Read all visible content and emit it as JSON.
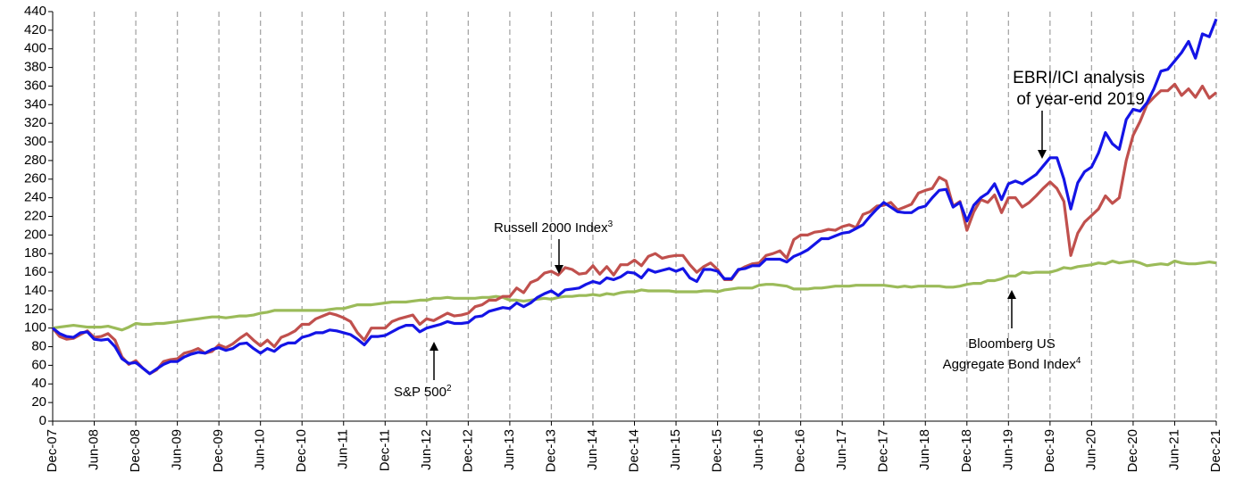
{
  "chart_data": {
    "type": "line",
    "categories": [
      "Dec-07",
      null,
      null,
      null,
      null,
      null,
      "Jun-08",
      null,
      null,
      null,
      null,
      null,
      "Dec-08",
      null,
      null,
      null,
      null,
      null,
      "Jun-09",
      null,
      null,
      null,
      null,
      null,
      "Dec-09",
      null,
      null,
      null,
      null,
      null,
      "Jun-10",
      null,
      null,
      null,
      null,
      null,
      "Dec-10",
      null,
      null,
      null,
      null,
      null,
      "Jun-11",
      null,
      null,
      null,
      null,
      null,
      "Dec-11",
      null,
      null,
      null,
      null,
      null,
      "Jun-12",
      null,
      null,
      null,
      null,
      null,
      "Dec-12",
      null,
      null,
      null,
      null,
      null,
      "Jun-13",
      null,
      null,
      null,
      null,
      null,
      "Dec-13",
      null,
      null,
      null,
      null,
      null,
      "Jun-14",
      null,
      null,
      null,
      null,
      null,
      "Dec-14",
      null,
      null,
      null,
      null,
      null,
      "Jun-15",
      null,
      null,
      null,
      null,
      null,
      "Dec-15",
      null,
      null,
      null,
      null,
      null,
      "Jun-16",
      null,
      null,
      null,
      null,
      null,
      "Dec-16",
      null,
      null,
      null,
      null,
      null,
      "Jun-17",
      null,
      null,
      null,
      null,
      null,
      "Dec-17",
      null,
      null,
      null,
      null,
      null,
      "Jun-18",
      null,
      null,
      null,
      null,
      null,
      "Dec-18",
      null,
      null,
      null,
      null,
      null,
      "Jun-19",
      null,
      null,
      null,
      null,
      null,
      "Dec-19",
      null,
      null,
      null,
      null,
      null,
      "Jun-20",
      null,
      null,
      null,
      null,
      null,
      "Dec-20",
      null,
      null,
      null,
      null,
      null,
      "Jun-21",
      null,
      null,
      null,
      null,
      null,
      "Dec-21"
    ],
    "series": [
      {
        "name": "S&P 500",
        "sup": "2",
        "color": "#1414e6",
        "values": [
          100,
          94,
          91,
          90,
          95,
          96,
          88,
          87,
          88,
          80,
          67,
          62,
          63,
          57,
          51,
          56,
          61,
          64,
          64,
          69,
          72,
          74,
          73,
          77,
          79,
          76,
          78,
          83,
          84,
          78,
          73,
          78,
          75,
          81,
          84,
          84,
          90,
          92,
          95,
          95,
          98,
          97,
          95,
          93,
          88,
          82,
          91,
          91,
          92,
          96,
          100,
          103,
          103,
          96,
          100,
          102,
          104,
          107,
          105,
          105,
          106,
          112,
          113,
          118,
          120,
          122,
          121,
          127,
          123,
          127,
          133,
          137,
          140,
          135,
          141,
          142,
          143,
          147,
          150,
          148,
          154,
          152,
          155,
          160,
          159,
          154,
          163,
          160,
          162,
          164,
          161,
          164,
          154,
          150,
          163,
          163,
          161,
          153,
          153,
          163,
          164,
          167,
          167,
          174,
          174,
          174,
          171,
          177,
          180,
          184,
          190,
          196,
          196,
          199,
          202,
          203,
          207,
          211,
          220,
          228,
          235,
          230,
          225,
          224,
          224,
          229,
          231,
          240,
          248,
          249,
          230,
          235,
          215,
          232,
          240,
          245,
          255,
          238,
          255,
          258,
          255,
          260,
          265,
          274,
          283,
          283,
          260,
          228,
          256,
          268,
          273,
          288,
          310,
          298,
          292,
          324,
          335,
          333,
          342,
          357,
          376,
          378,
          387,
          396,
          408,
          390,
          416,
          413,
          432
        ]
      },
      {
        "name": "Russell 2000 Index",
        "sup": "3",
        "color": "#c0504d",
        "values": [
          100,
          91,
          88,
          89,
          93,
          97,
          90,
          91,
          94,
          87,
          69,
          61,
          65,
          57,
          51,
          55,
          64,
          66,
          67,
          73,
          75,
          78,
          73,
          75,
          82,
          79,
          83,
          89,
          94,
          87,
          81,
          87,
          80,
          90,
          93,
          97,
          104,
          104,
          110,
          113,
          116,
          114,
          111,
          107,
          95,
          87,
          100,
          100,
          100,
          107,
          110,
          112,
          114,
          104,
          110,
          108,
          112,
          116,
          113,
          114,
          116,
          123,
          125,
          130,
          130,
          134,
          134,
          143,
          138,
          149,
          152,
          159,
          161,
          157,
          165,
          163,
          158,
          159,
          167,
          158,
          166,
          157,
          168,
          168,
          173,
          167,
          177,
          180,
          175,
          177,
          178,
          178,
          168,
          160,
          166,
          170,
          163,
          152,
          152,
          162,
          166,
          169,
          170,
          178,
          180,
          183,
          175,
          195,
          200,
          200,
          203,
          204,
          206,
          205,
          209,
          211,
          208,
          222,
          225,
          231,
          232,
          235,
          227,
          230,
          233,
          245,
          248,
          250,
          262,
          258,
          231,
          236,
          205,
          225,
          238,
          235,
          243,
          224,
          240,
          240,
          230,
          235,
          242,
          250,
          257,
          250,
          236,
          178,
          202,
          214,
          221,
          228,
          242,
          234,
          240,
          280,
          307,
          322,
          340,
          348,
          355,
          355,
          362,
          350,
          357,
          348,
          360,
          347,
          353
        ]
      },
      {
        "name": "Bloomberg US Aggregate Bond Index",
        "sup": "4",
        "color": "#9bbb59",
        "values": [
          100,
          101,
          102,
          103,
          102,
          101,
          101,
          101,
          102,
          100,
          98,
          101,
          105,
          104,
          104,
          105,
          105,
          106,
          107,
          108,
          109,
          110,
          111,
          112,
          112,
          111,
          112,
          113,
          113,
          114,
          116,
          117,
          119,
          119,
          119,
          119,
          119,
          119,
          119,
          119,
          120,
          121,
          121,
          123,
          125,
          125,
          125,
          126,
          127,
          128,
          128,
          128,
          129,
          130,
          130,
          132,
          132,
          133,
          132,
          132,
          132,
          132,
          133,
          133,
          134,
          133,
          130,
          130,
          129,
          130,
          131,
          132,
          131,
          133,
          134,
          134,
          135,
          135,
          136,
          135,
          137,
          136,
          138,
          139,
          139,
          141,
          140,
          140,
          140,
          140,
          139,
          139,
          139,
          139,
          140,
          140,
          139,
          141,
          142,
          143,
          143,
          143,
          146,
          147,
          147,
          146,
          145,
          142,
          142,
          142,
          143,
          143,
          144,
          145,
          145,
          145,
          146,
          146,
          146,
          146,
          146,
          145,
          144,
          145,
          144,
          145,
          145,
          145,
          145,
          144,
          144,
          145,
          147,
          148,
          148,
          151,
          151,
          153,
          156,
          156,
          160,
          159,
          160,
          160,
          160,
          162,
          165,
          164,
          166,
          167,
          168,
          170,
          169,
          172,
          170,
          171,
          172,
          170,
          167,
          168,
          169,
          168,
          172,
          170,
          169,
          169,
          170,
          171,
          170
        ]
      }
    ],
    "annotation": [
      "EBRI/ICI analysis",
      "of year-end 2019"
    ],
    "ylim": [
      0,
      440
    ],
    "yticks": [
      0,
      20,
      40,
      60,
      80,
      100,
      120,
      140,
      160,
      180,
      200,
      220,
      240,
      260,
      280,
      300,
      320,
      340,
      360,
      380,
      400,
      420,
      440
    ],
    "grid": "x"
  }
}
